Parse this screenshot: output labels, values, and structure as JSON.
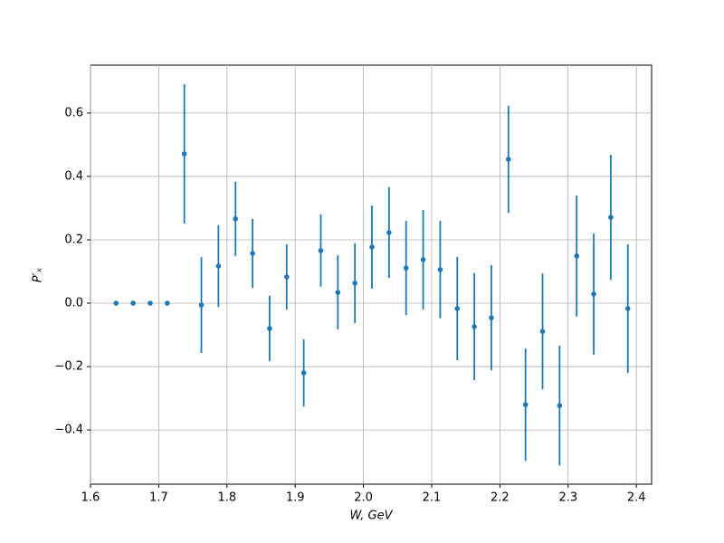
{
  "chart_data": {
    "type": "errorbar",
    "x_label": "W, GeV",
    "y_label": "P′ₓ",
    "x": [
      1.6375,
      1.6625,
      1.6875,
      1.7125,
      1.7375,
      1.7625,
      1.7875,
      1.8125,
      1.8375,
      1.8625,
      1.8875,
      1.9125,
      1.9375,
      1.9625,
      1.9875,
      2.0125,
      2.0375,
      2.0625,
      2.0875,
      2.1125,
      2.1375,
      2.1625,
      2.1875,
      2.2125,
      2.2375,
      2.2625,
      2.2875,
      2.3125,
      2.3375,
      2.3625,
      2.3875
    ],
    "values": [
      0,
      0,
      0,
      0,
      0.471,
      -0.006,
      0.117,
      0.266,
      0.157,
      -0.08,
      0.083,
      -0.22,
      0.166,
      0.034,
      0.063,
      0.177,
      0.223,
      0.111,
      0.137,
      0.106,
      -0.017,
      -0.074,
      -0.046,
      0.454,
      -0.32,
      -0.089,
      -0.323,
      0.149,
      0.029,
      0.271,
      -0.017
    ],
    "errors": [
      0,
      0,
      0,
      0,
      0.22,
      0.151,
      0.129,
      0.117,
      0.109,
      0.103,
      0.103,
      0.106,
      0.114,
      0.117,
      0.126,
      0.131,
      0.143,
      0.149,
      0.157,
      0.154,
      0.163,
      0.169,
      0.166,
      0.169,
      0.177,
      0.183,
      0.189,
      0.191,
      0.191,
      0.197,
      0.203
    ],
    "color": "#1f77b4",
    "xlim": [
      1.6,
      2.4223
    ],
    "ylim": [
      -0.571,
      0.751
    ],
    "xticks": [
      1.6,
      1.7,
      1.8,
      1.9,
      {
        "value": 2.0,
        "label": "2.0"
      },
      2.1,
      2.2,
      2.3,
      2.4
    ],
    "yticks": [
      {
        "value": -0.4,
        "label": "−0.4"
      },
      {
        "value": -0.2,
        "label": "−0.2"
      },
      {
        "value": 0,
        "label": "0.0"
      },
      0.2,
      0.4,
      0.6
    ],
    "grid": true
  }
}
